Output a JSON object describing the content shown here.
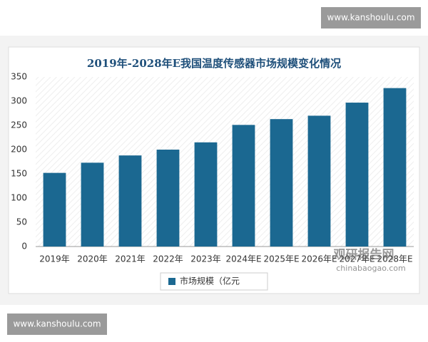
{
  "chart_data": {
    "type": "bar",
    "title": "2019年-2028年E我国温度传感器市场规模变化情况",
    "categories": [
      "2019年",
      "2020年",
      "2021年",
      "2022年",
      "2023年",
      "2024年E",
      "2025年E",
      "2026年E",
      "2027年E",
      "2028年E"
    ],
    "series": [
      {
        "name": "市场规模（亿元",
        "color": "#1b6891",
        "values": [
          152,
          173,
          188,
          200,
          215,
          251,
          263,
          270,
          297,
          327
        ]
      }
    ],
    "ylim": [
      0,
      350
    ],
    "yticks": [
      0,
      50,
      100,
      150,
      200,
      250,
      300,
      350
    ],
    "grid": false
  },
  "watermarks": [
    "www.kanshoulu.com",
    "www.kanshoulu.com",
    "观研报告网",
    "chinabaogao.com"
  ]
}
